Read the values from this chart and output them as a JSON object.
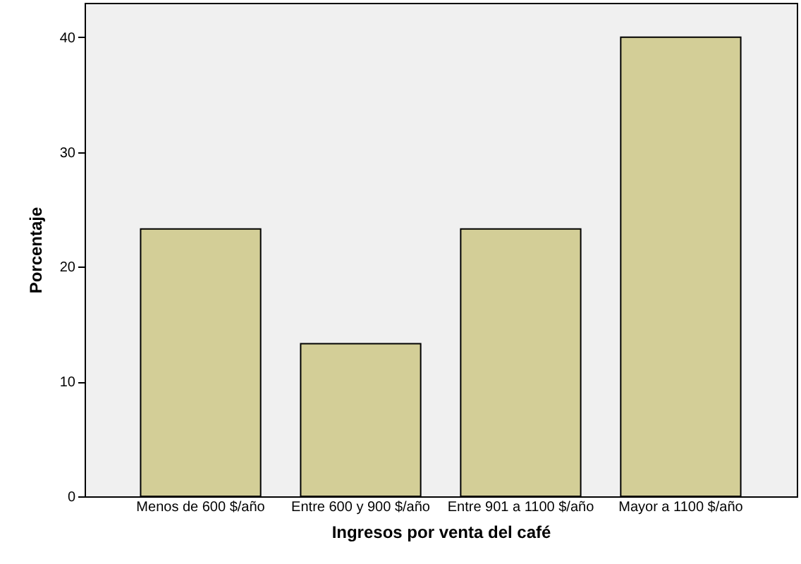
{
  "chart_data": {
    "type": "bar",
    "xlabel": "Ingresos por venta del café",
    "ylabel": "Porcentaje",
    "categories": [
      "Menos de 600 $/año",
      "Entre 600 y 900 $/año",
      "Entre 901 a 1100 $/año",
      "Mayor a 1100 $/año"
    ],
    "values": [
      23.3,
      13.3,
      23.3,
      40
    ],
    "color": "#d3ce97",
    "ylim": [
      0,
      43
    ],
    "yticks": [
      0,
      10,
      20,
      30,
      40
    ],
    "grid": false
  }
}
